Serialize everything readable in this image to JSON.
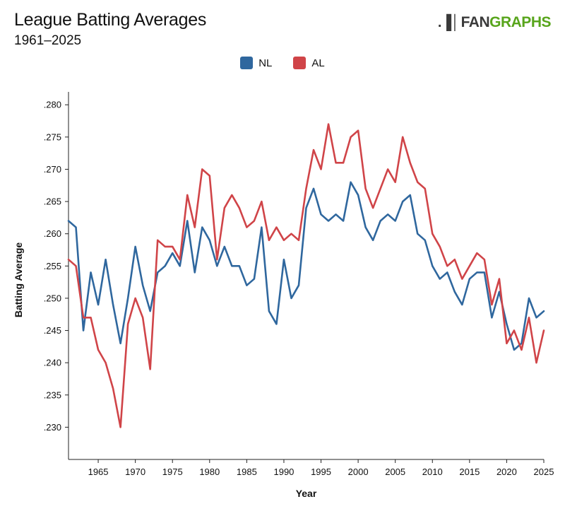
{
  "header": {
    "title": "League Batting Averages",
    "subtitle": "1961–2025",
    "logo_mark": ".▐│",
    "logo_fan": "FAN",
    "logo_graphs": "GRAPHS"
  },
  "colors": {
    "NL": "#2f679e",
    "AL": "#d04448"
  },
  "chart_data": {
    "type": "line",
    "xlabel": "Year",
    "ylabel": "Batting Average",
    "xlim": [
      1961,
      2025
    ],
    "ylim": [
      0.225,
      0.282
    ],
    "x_ticks": [
      1965,
      1970,
      1975,
      1980,
      1985,
      1990,
      1995,
      2000,
      2005,
      2010,
      2015,
      2020,
      2025
    ],
    "y_ticks": [
      0.23,
      0.235,
      0.24,
      0.245,
      0.25,
      0.255,
      0.26,
      0.265,
      0.27,
      0.275,
      0.28
    ],
    "y_tick_labels": [
      ".230",
      ".235",
      ".240",
      ".245",
      ".250",
      ".255",
      ".260",
      ".265",
      ".270",
      ".275",
      ".280"
    ],
    "legend_position": "top-center",
    "grid": false,
    "x": [
      1961,
      1962,
      1963,
      1964,
      1965,
      1966,
      1967,
      1968,
      1969,
      1970,
      1971,
      1972,
      1973,
      1974,
      1975,
      1976,
      1977,
      1978,
      1979,
      1980,
      1981,
      1982,
      1983,
      1984,
      1985,
      1986,
      1987,
      1988,
      1989,
      1990,
      1991,
      1992,
      1993,
      1994,
      1995,
      1996,
      1997,
      1998,
      1999,
      2000,
      2001,
      2002,
      2003,
      2004,
      2005,
      2006,
      2007,
      2008,
      2009,
      2010,
      2011,
      2012,
      2013,
      2014,
      2015,
      2016,
      2017,
      2018,
      2019,
      2020,
      2021,
      2022,
      2023,
      2024,
      2025
    ],
    "series": [
      {
        "name": "NL",
        "values": [
          0.262,
          0.261,
          0.245,
          0.254,
          0.249,
          0.256,
          0.249,
          0.243,
          0.25,
          0.258,
          0.252,
          0.248,
          0.254,
          0.255,
          0.257,
          0.255,
          0.262,
          0.254,
          0.261,
          0.259,
          0.255,
          0.258,
          0.255,
          0.255,
          0.252,
          0.253,
          0.261,
          0.248,
          0.246,
          0.256,
          0.25,
          0.252,
          0.264,
          0.267,
          0.263,
          0.262,
          0.263,
          0.262,
          0.268,
          0.266,
          0.261,
          0.259,
          0.262,
          0.263,
          0.262,
          0.265,
          0.266,
          0.26,
          0.259,
          0.255,
          0.253,
          0.254,
          0.251,
          0.249,
          0.253,
          0.254,
          0.254,
          0.247,
          0.251,
          0.246,
          0.242,
          0.243,
          0.25,
          0.247,
          0.248
        ]
      },
      {
        "name": "AL",
        "values": [
          0.256,
          0.255,
          0.247,
          0.247,
          0.242,
          0.24,
          0.236,
          0.23,
          0.246,
          0.25,
          0.247,
          0.239,
          0.259,
          0.258,
          0.258,
          0.256,
          0.266,
          0.261,
          0.27,
          0.269,
          0.256,
          0.264,
          0.266,
          0.264,
          0.261,
          0.262,
          0.265,
          0.259,
          0.261,
          0.259,
          0.26,
          0.259,
          0.267,
          0.273,
          0.27,
          0.277,
          0.271,
          0.271,
          0.275,
          0.276,
          0.267,
          0.264,
          0.267,
          0.27,
          0.268,
          0.275,
          0.271,
          0.268,
          0.267,
          0.26,
          0.258,
          0.255,
          0.256,
          0.253,
          0.255,
          0.257,
          0.256,
          0.249,
          0.253,
          0.243,
          0.245,
          0.242,
          0.247,
          0.24,
          0.245
        ]
      }
    ]
  }
}
